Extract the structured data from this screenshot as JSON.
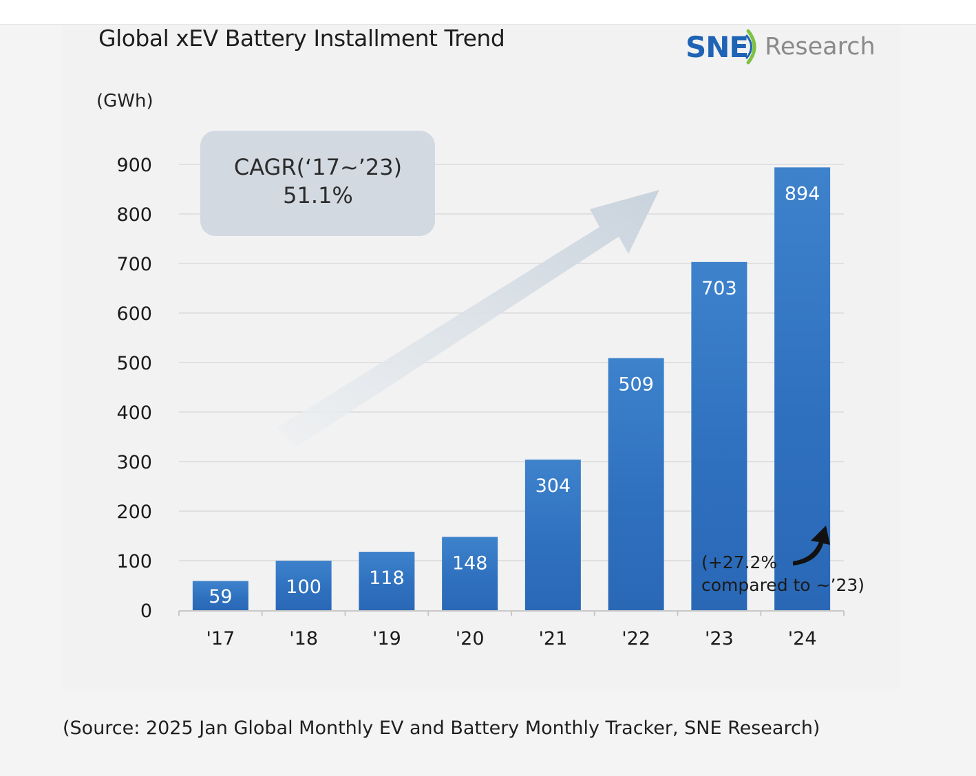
{
  "source_note": "(Source: 2025 Jan Global Monthly EV and Battery Monthly Tracker, SNE Research)",
  "logo": {
    "brand": "SNE",
    "suffix": "Research",
    "brand_color": "#1f63b5",
    "suffix_color": "#8a8a8a"
  },
  "chart_data": {
    "type": "bar",
    "title": "Global xEV Battery Installment Trend",
    "unit_label": "(GWh)",
    "categories": [
      "'17",
      "'18",
      "'19",
      "'20",
      "'21",
      "'22",
      "'23",
      "'24"
    ],
    "values": [
      59,
      100,
      118,
      148,
      304,
      509,
      703,
      894
    ],
    "ylim": [
      0,
      900
    ],
    "yticks": [
      0,
      100,
      200,
      300,
      400,
      500,
      600,
      700,
      800,
      900
    ],
    "grid": true,
    "bar_color": "#2f72c0",
    "annotations": {
      "cagr_line1": "CAGR(‘17~’23)",
      "cagr_line2": "51.1%",
      "growth_line1": "(+27.2%",
      "growth_line2": "compared to ~’23)"
    }
  }
}
